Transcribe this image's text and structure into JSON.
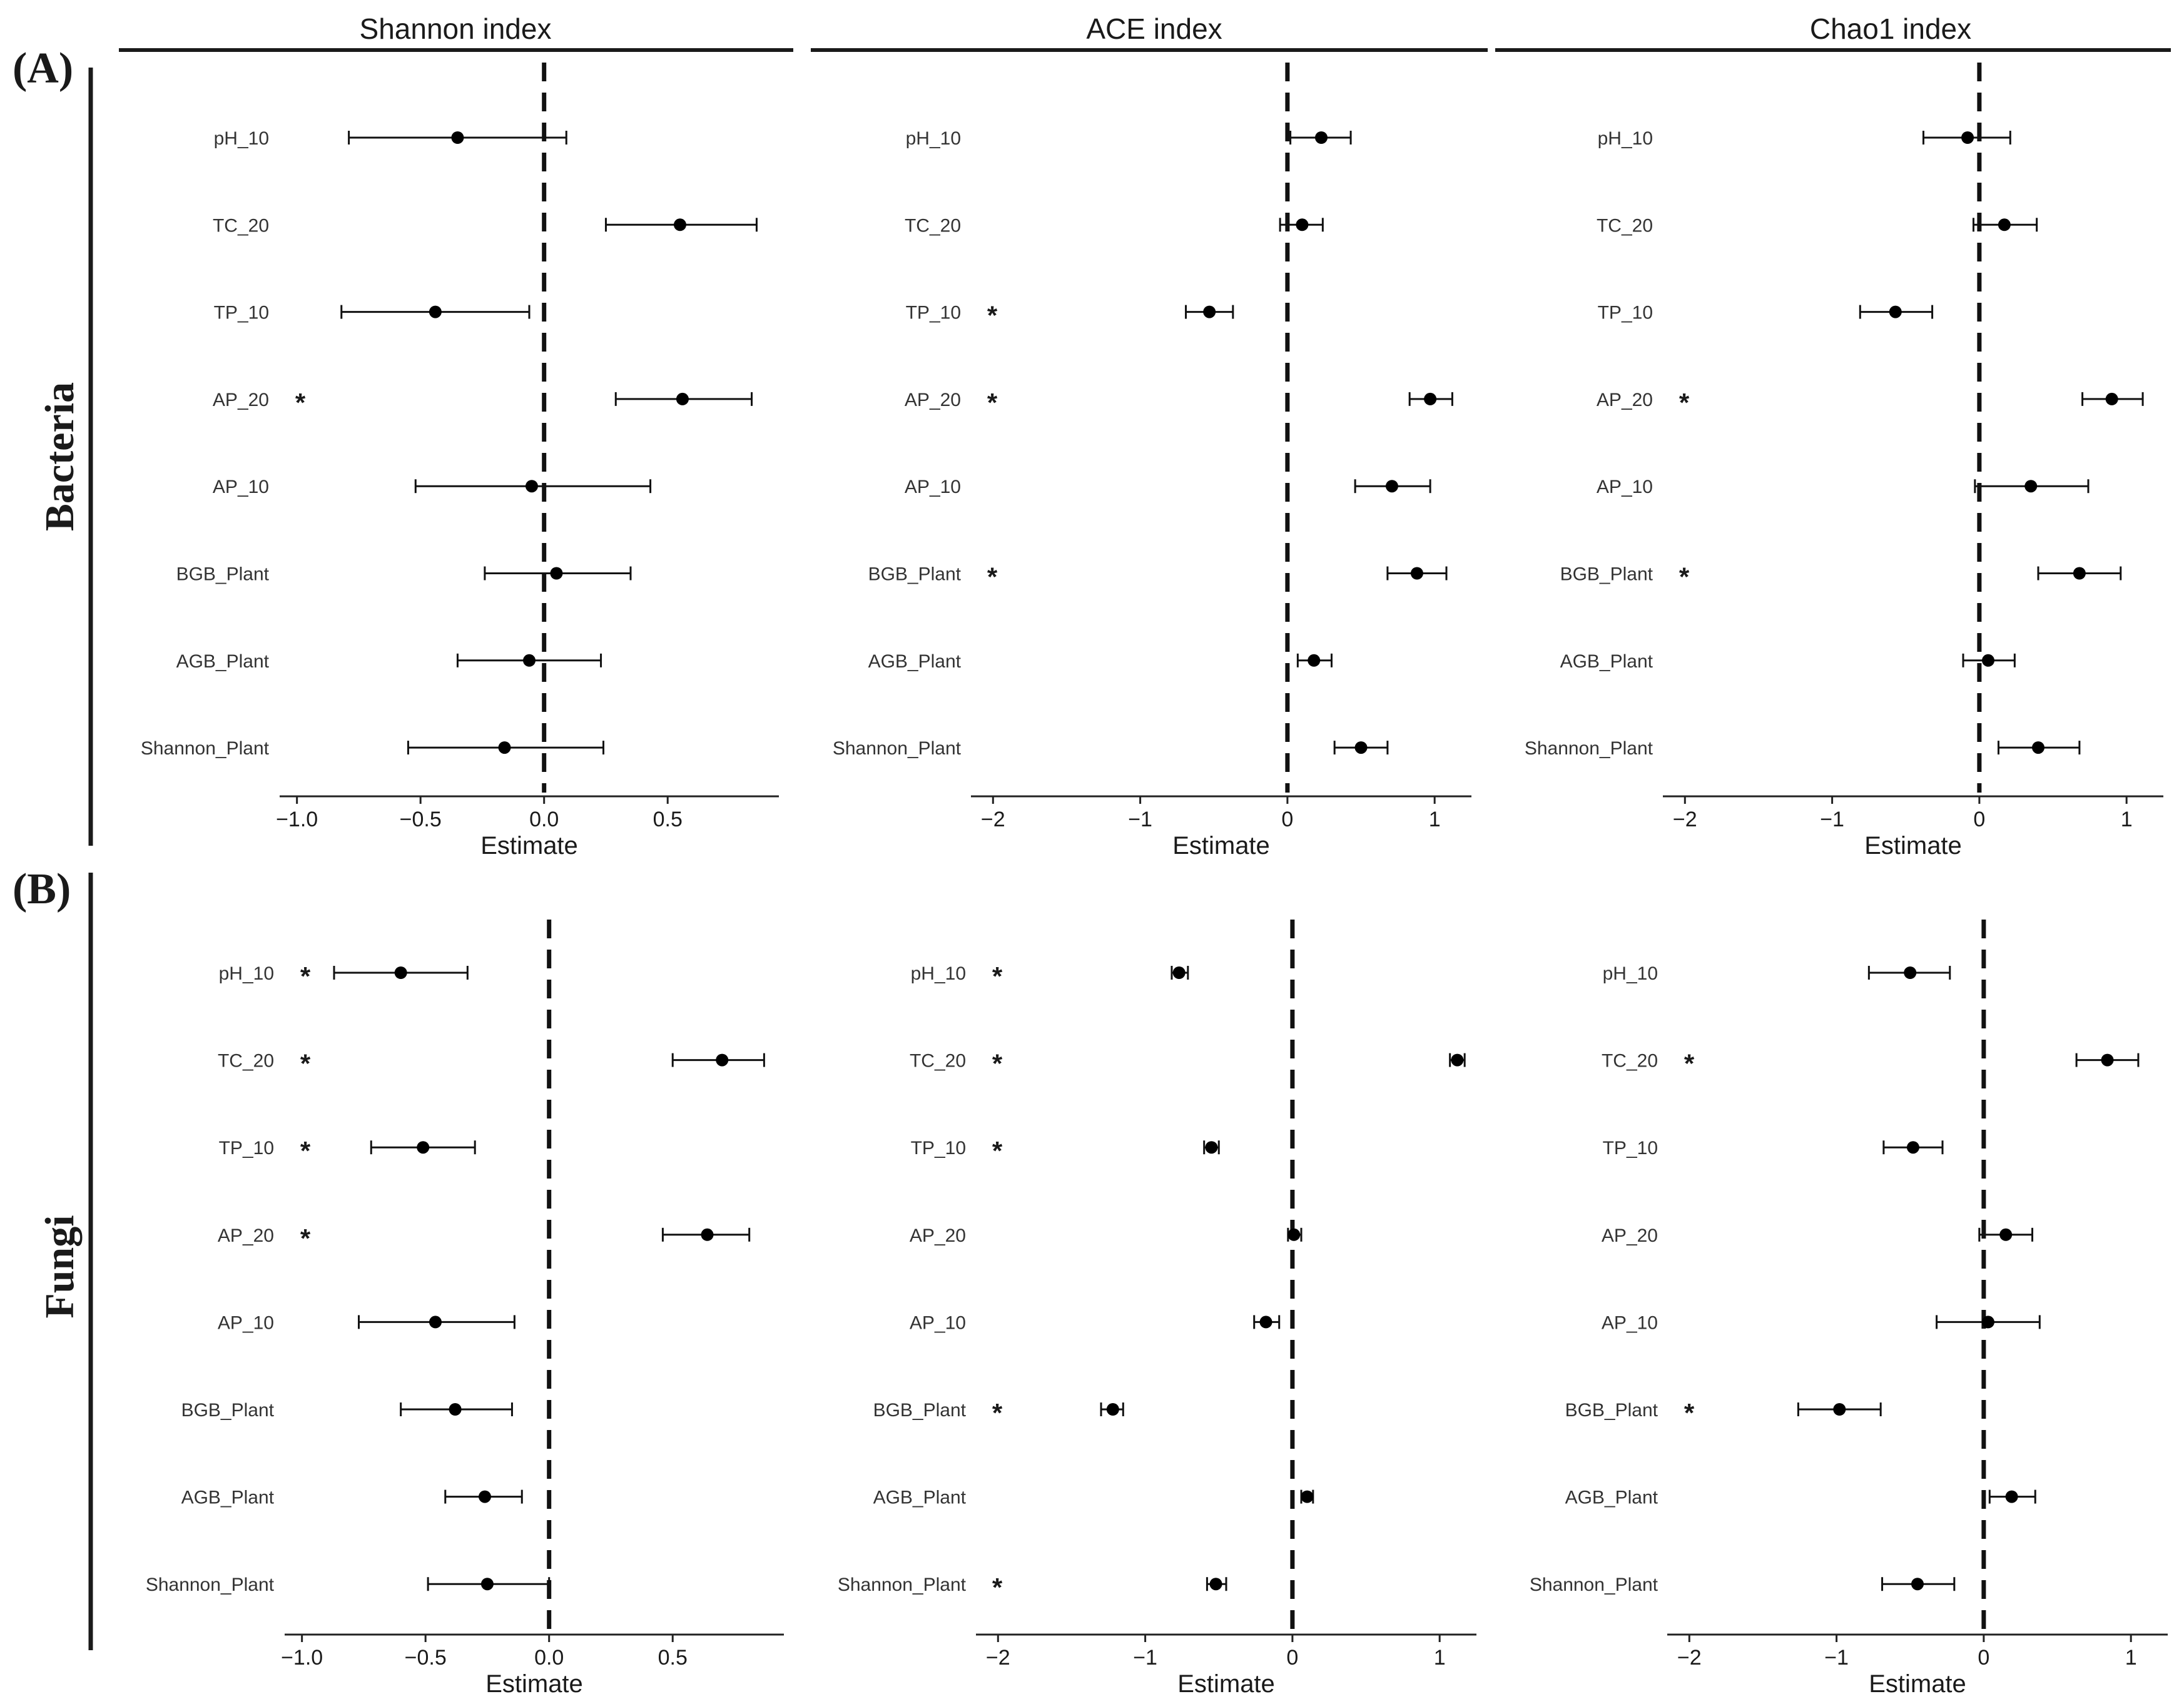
{
  "panel_labels": [
    "(A)",
    "(B)"
  ],
  "row_labels": [
    "Bacteria",
    "Fungi"
  ],
  "column_titles": [
    "Shannon index",
    "ACE index",
    "Chao1 index"
  ],
  "chart_data": [
    {
      "type": "forest",
      "id": "bacteria-shannon",
      "group": "Bacteria",
      "title": "Shannon index",
      "xlabel": "Estimate",
      "xlim": [
        -1.07,
        0.95
      ],
      "xticks": [
        -1.0,
        -0.5,
        0.0,
        0.5
      ],
      "xtick_labels": [
        "−1.0",
        "−0.5",
        "0.0",
        "0.5"
      ],
      "reference_line": 0,
      "variables": [
        "pH_10",
        "TC_20",
        "TP_10",
        "AP_20",
        "AP_10",
        "BGB_Plant",
        "AGB_Plant",
        "Shannon_Plant"
      ],
      "estimates": [
        -0.35,
        0.55,
        -0.44,
        0.56,
        -0.05,
        0.05,
        -0.06,
        -0.16
      ],
      "lower": [
        -0.79,
        0.25,
        -0.82,
        0.29,
        -0.52,
        -0.24,
        -0.35,
        -0.55
      ],
      "upper": [
        0.09,
        0.86,
        -0.06,
        0.84,
        0.43,
        0.35,
        0.23,
        0.24
      ],
      "significant": [
        false,
        false,
        false,
        true,
        false,
        false,
        false,
        false
      ]
    },
    {
      "type": "forest",
      "id": "bacteria-ace",
      "group": "Bacteria",
      "title": "ACE index",
      "xlabel": "Estimate",
      "xlim": [
        -2.15,
        1.25
      ],
      "xticks": [
        -2,
        -1,
        0,
        1
      ],
      "xtick_labels": [
        "−2",
        "−1",
        "0",
        "1"
      ],
      "reference_line": 0,
      "variables": [
        "pH_10",
        "TC_20",
        "TP_10",
        "AP_20",
        "AP_10",
        "BGB_Plant",
        "AGB_Plant",
        "Shannon_Plant"
      ],
      "estimates": [
        0.23,
        0.1,
        -0.53,
        0.97,
        0.71,
        0.88,
        0.18,
        0.5
      ],
      "lower": [
        0.02,
        -0.05,
        -0.69,
        0.83,
        0.46,
        0.68,
        0.07,
        0.32
      ],
      "upper": [
        0.43,
        0.24,
        -0.37,
        1.12,
        0.97,
        1.08,
        0.3,
        0.68
      ],
      "significant": [
        false,
        false,
        true,
        true,
        false,
        true,
        false,
        false
      ]
    },
    {
      "type": "forest",
      "id": "bacteria-chao1",
      "group": "Bacteria",
      "title": "Chao1 index",
      "xlabel": "Estimate",
      "xlim": [
        -2.15,
        1.25
      ],
      "xticks": [
        -2,
        -1,
        0,
        1
      ],
      "xtick_labels": [
        "−2",
        "−1",
        "0",
        "1"
      ],
      "reference_line": 0,
      "variables": [
        "pH_10",
        "TC_20",
        "TP_10",
        "AP_20",
        "AP_10",
        "BGB_Plant",
        "AGB_Plant",
        "Shannon_Plant"
      ],
      "estimates": [
        -0.08,
        0.17,
        -0.57,
        0.9,
        0.35,
        0.68,
        0.06,
        0.4
      ],
      "lower": [
        -0.38,
        -0.04,
        -0.81,
        0.7,
        -0.03,
        0.4,
        -0.11,
        0.13
      ],
      "upper": [
        0.21,
        0.39,
        -0.32,
        1.11,
        0.74,
        0.96,
        0.24,
        0.68
      ],
      "significant": [
        false,
        false,
        false,
        true,
        false,
        true,
        false,
        false
      ]
    },
    {
      "type": "forest",
      "id": "fungi-shannon",
      "group": "Fungi",
      "title": "Shannon index",
      "xlabel": "Estimate",
      "xlim": [
        -1.07,
        0.95
      ],
      "xticks": [
        -1.0,
        -0.5,
        0.0,
        0.5
      ],
      "xtick_labels": [
        "−1.0",
        "−0.5",
        "0.0",
        "0.5"
      ],
      "reference_line": 0,
      "variables": [
        "pH_10",
        "TC_20",
        "TP_10",
        "AP_20",
        "AP_10",
        "BGB_Plant",
        "AGB_Plant",
        "Shannon_Plant"
      ],
      "estimates": [
        -0.6,
        0.7,
        -0.51,
        0.64,
        -0.46,
        -0.38,
        -0.26,
        -0.25
      ],
      "lower": [
        -0.87,
        0.5,
        -0.72,
        0.46,
        -0.77,
        -0.6,
        -0.42,
        -0.49
      ],
      "upper": [
        -0.33,
        0.87,
        -0.3,
        0.81,
        -0.14,
        -0.15,
        -0.11,
        0.0
      ],
      "significant": [
        true,
        true,
        true,
        true,
        false,
        false,
        false,
        false
      ]
    },
    {
      "type": "forest",
      "id": "fungi-ace",
      "group": "Fungi",
      "title": "ACE index",
      "xlabel": "Estimate",
      "xlim": [
        -2.15,
        1.25
      ],
      "xticks": [
        -2,
        -1,
        0,
        1
      ],
      "xtick_labels": [
        "−2",
        "−1",
        "0",
        "1"
      ],
      "reference_line": 0,
      "variables": [
        "pH_10",
        "TC_20",
        "TP_10",
        "AP_20",
        "AP_10",
        "BGB_Plant",
        "AGB_Plant",
        "Shannon_Plant"
      ],
      "estimates": [
        -0.77,
        1.12,
        -0.55,
        0.01,
        -0.18,
        -1.22,
        0.1,
        -0.52
      ],
      "lower": [
        -0.82,
        1.07,
        -0.6,
        -0.03,
        -0.26,
        -1.3,
        0.06,
        -0.58
      ],
      "upper": [
        -0.71,
        1.17,
        -0.5,
        0.06,
        -0.09,
        -1.15,
        0.14,
        -0.45
      ],
      "significant": [
        true,
        true,
        true,
        false,
        false,
        true,
        false,
        true
      ]
    },
    {
      "type": "forest",
      "id": "fungi-chao1",
      "group": "Fungi",
      "title": "Chao1 index",
      "xlabel": "Estimate",
      "xlim": [
        -2.15,
        1.25
      ],
      "xticks": [
        -2,
        -1,
        0,
        1
      ],
      "xtick_labels": [
        "−2",
        "−1",
        "0",
        "1"
      ],
      "reference_line": 0,
      "variables": [
        "pH_10",
        "TC_20",
        "TP_10",
        "AP_20",
        "AP_10",
        "BGB_Plant",
        "AGB_Plant",
        "Shannon_Plant"
      ],
      "estimates": [
        -0.5,
        0.84,
        -0.48,
        0.15,
        0.03,
        -0.98,
        0.19,
        -0.45
      ],
      "lower": [
        -0.78,
        0.63,
        -0.68,
        -0.03,
        -0.32,
        -1.26,
        0.04,
        -0.69
      ],
      "upper": [
        -0.23,
        1.05,
        -0.28,
        0.33,
        0.38,
        -0.7,
        0.35,
        -0.2
      ],
      "significant": [
        false,
        true,
        false,
        false,
        false,
        true,
        false,
        false
      ]
    }
  ]
}
